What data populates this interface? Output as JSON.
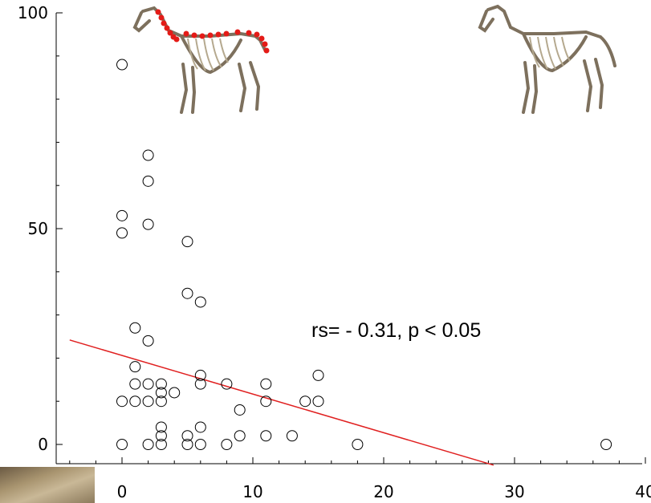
{
  "chart_data": {
    "type": "scatter",
    "title": "",
    "xlabel": "",
    "ylabel": "",
    "xlim": [
      -4,
      40
    ],
    "ylim": [
      -7,
      100
    ],
    "x_ticks": [
      0,
      10,
      20,
      30,
      40
    ],
    "x_tick_labels": [
      "0",
      "10",
      "20",
      "30",
      "40"
    ],
    "y_ticks": [
      0,
      50,
      100
    ],
    "y_tick_labels": [
      "0",
      "50",
      "100"
    ],
    "grid": false,
    "points": [
      [
        0,
        88
      ],
      [
        0,
        53
      ],
      [
        0,
        49
      ],
      [
        0,
        10
      ],
      [
        0,
        0
      ],
      [
        1,
        27
      ],
      [
        1,
        18
      ],
      [
        1,
        14
      ],
      [
        1,
        10
      ],
      [
        2,
        67
      ],
      [
        2,
        61
      ],
      [
        2,
        51
      ],
      [
        2,
        24
      ],
      [
        2,
        14
      ],
      [
        2,
        10
      ],
      [
        2,
        0
      ],
      [
        3,
        14
      ],
      [
        3,
        12
      ],
      [
        3,
        10
      ],
      [
        3,
        4
      ],
      [
        3,
        2
      ],
      [
        3,
        0
      ],
      [
        4,
        12
      ],
      [
        5,
        47
      ],
      [
        5,
        35
      ],
      [
        5,
        2
      ],
      [
        5,
        0
      ],
      [
        6,
        33
      ],
      [
        6,
        16
      ],
      [
        6,
        14
      ],
      [
        6,
        4
      ],
      [
        6,
        0
      ],
      [
        8,
        14
      ],
      [
        8,
        0
      ],
      [
        9,
        8
      ],
      [
        9,
        2
      ],
      [
        11,
        14
      ],
      [
        11,
        10
      ],
      [
        11,
        2
      ],
      [
        13,
        2
      ],
      [
        14,
        10
      ],
      [
        15,
        16
      ],
      [
        15,
        10
      ],
      [
        18,
        0
      ],
      [
        37,
        0
      ]
    ],
    "trendline": {
      "x": [
        -4,
        28.4
      ],
      "y": [
        24.2,
        -4.8
      ],
      "color": "#e02020"
    },
    "annotation": "rs= - 0.31, p < 0.05",
    "marker": "open-circle"
  }
}
